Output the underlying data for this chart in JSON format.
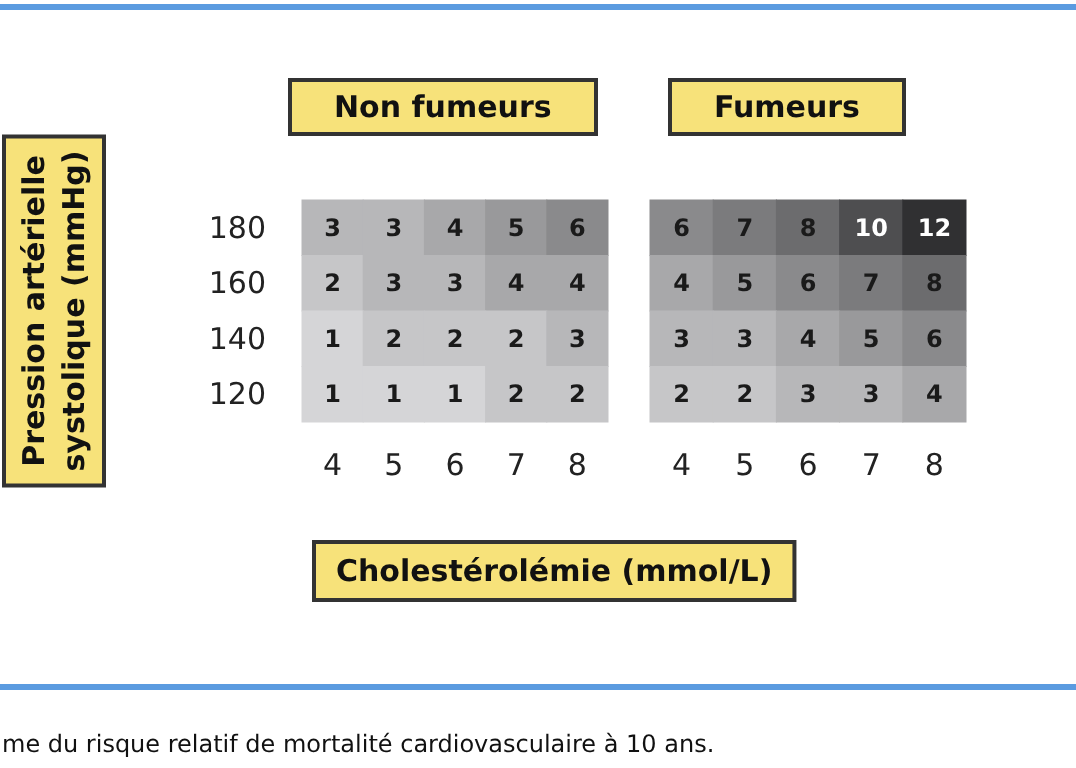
{
  "chart_data": [
    {
      "type": "heatmap",
      "title": "Non fumeurs",
      "ylabel": "Pression artérielle systolique (mmHg)",
      "xlabel": "Cholestérolémie (mmol/L)",
      "annotations": [
        "me du risque relatif de mortalité cardiovasculaire à 10 ans."
      ],
      "categories": [
        "4",
        "5",
        "6",
        "7",
        "8"
      ],
      "y_categories": [
        "180",
        "160",
        "140",
        "120"
      ],
      "cells": [
        [
          3,
          3,
          4,
          5,
          6
        ],
        [
          2,
          3,
          3,
          4,
          4
        ],
        [
          1,
          2,
          2,
          2,
          3
        ],
        [
          1,
          1,
          1,
          2,
          2
        ]
      ],
      "data_labels": true
    },
    {
      "type": "heatmap",
      "title": "Fumeurs",
      "categories": [
        "4",
        "5",
        "6",
        "7",
        "8"
      ],
      "y_categories": [
        "180",
        "160",
        "140",
        "120"
      ],
      "tick_labels": "x",
      "cells": [
        [
          6,
          7,
          8,
          10,
          12
        ],
        [
          4,
          5,
          6,
          7,
          8
        ],
        [
          3,
          3,
          4,
          5,
          6
        ],
        [
          2,
          2,
          3,
          3,
          4
        ]
      ],
      "data_labels": true
    }
  ]
}
